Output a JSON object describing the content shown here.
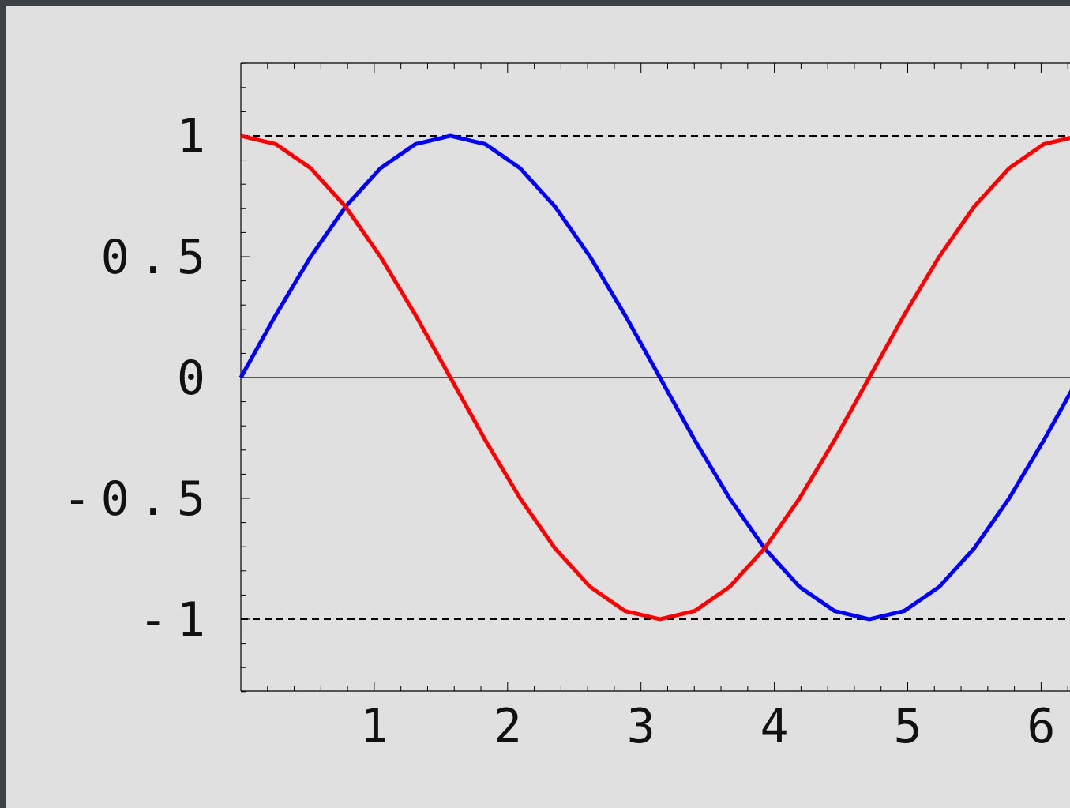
{
  "chart_data": {
    "type": "line",
    "title": "",
    "xlabel": "",
    "ylabel": "",
    "xlim": [
      0,
      6.3
    ],
    "ylim": [
      -1.3,
      1.3
    ],
    "x_ticks": [
      1,
      2,
      3,
      4,
      5,
      6
    ],
    "x_tick_labels": [
      "1",
      "2",
      "3",
      "4",
      "5",
      "6"
    ],
    "y_ticks": [
      1,
      0.5,
      0,
      -0.5,
      -1
    ],
    "y_tick_labels": [
      "1",
      "0.5",
      "0",
      "-0.5",
      "-1"
    ],
    "reference_lines": [
      {
        "y": 1,
        "style": "dashed",
        "color": "#000000"
      },
      {
        "y": -1,
        "style": "dashed",
        "color": "#000000"
      },
      {
        "y": 0,
        "style": "solid",
        "color": "#000000"
      }
    ],
    "grid": false,
    "series": [
      {
        "color": "#0000ff",
        "x": [
          0,
          0.262,
          0.524,
          0.785,
          1.047,
          1.309,
          1.571,
          1.833,
          2.094,
          2.356,
          2.618,
          2.88,
          3.142,
          3.403,
          3.665,
          3.927,
          4.189,
          4.451,
          4.712,
          4.974,
          5.236,
          5.498,
          5.76,
          6.021,
          6.283
        ],
        "values": [
          0,
          0.259,
          0.5,
          0.707,
          0.866,
          0.966,
          1,
          0.966,
          0.866,
          0.707,
          0.5,
          0.259,
          0,
          -0.259,
          -0.5,
          -0.707,
          -0.866,
          -0.966,
          -1,
          -0.966,
          -0.866,
          -0.707,
          -0.5,
          -0.259,
          0
        ]
      },
      {
        "color": "#ff0000",
        "x": [
          0,
          0.262,
          0.524,
          0.785,
          1.047,
          1.309,
          1.571,
          1.833,
          2.094,
          2.356,
          2.618,
          2.88,
          3.142,
          3.403,
          3.665,
          3.927,
          4.189,
          4.451,
          4.712,
          4.974,
          5.236,
          5.498,
          5.76,
          6.021,
          6.283
        ],
        "values": [
          1,
          0.966,
          0.866,
          0.707,
          0.5,
          0.259,
          0,
          -0.259,
          -0.5,
          -0.707,
          -0.866,
          -0.966,
          -1,
          -0.966,
          -0.866,
          -0.707,
          -0.5,
          -0.259,
          0,
          0.259,
          0.5,
          0.707,
          0.866,
          0.966,
          1
        ]
      }
    ]
  },
  "colors": {
    "background": "#e0e0e0",
    "window_border": "#3a4147",
    "axis": "#000000"
  }
}
